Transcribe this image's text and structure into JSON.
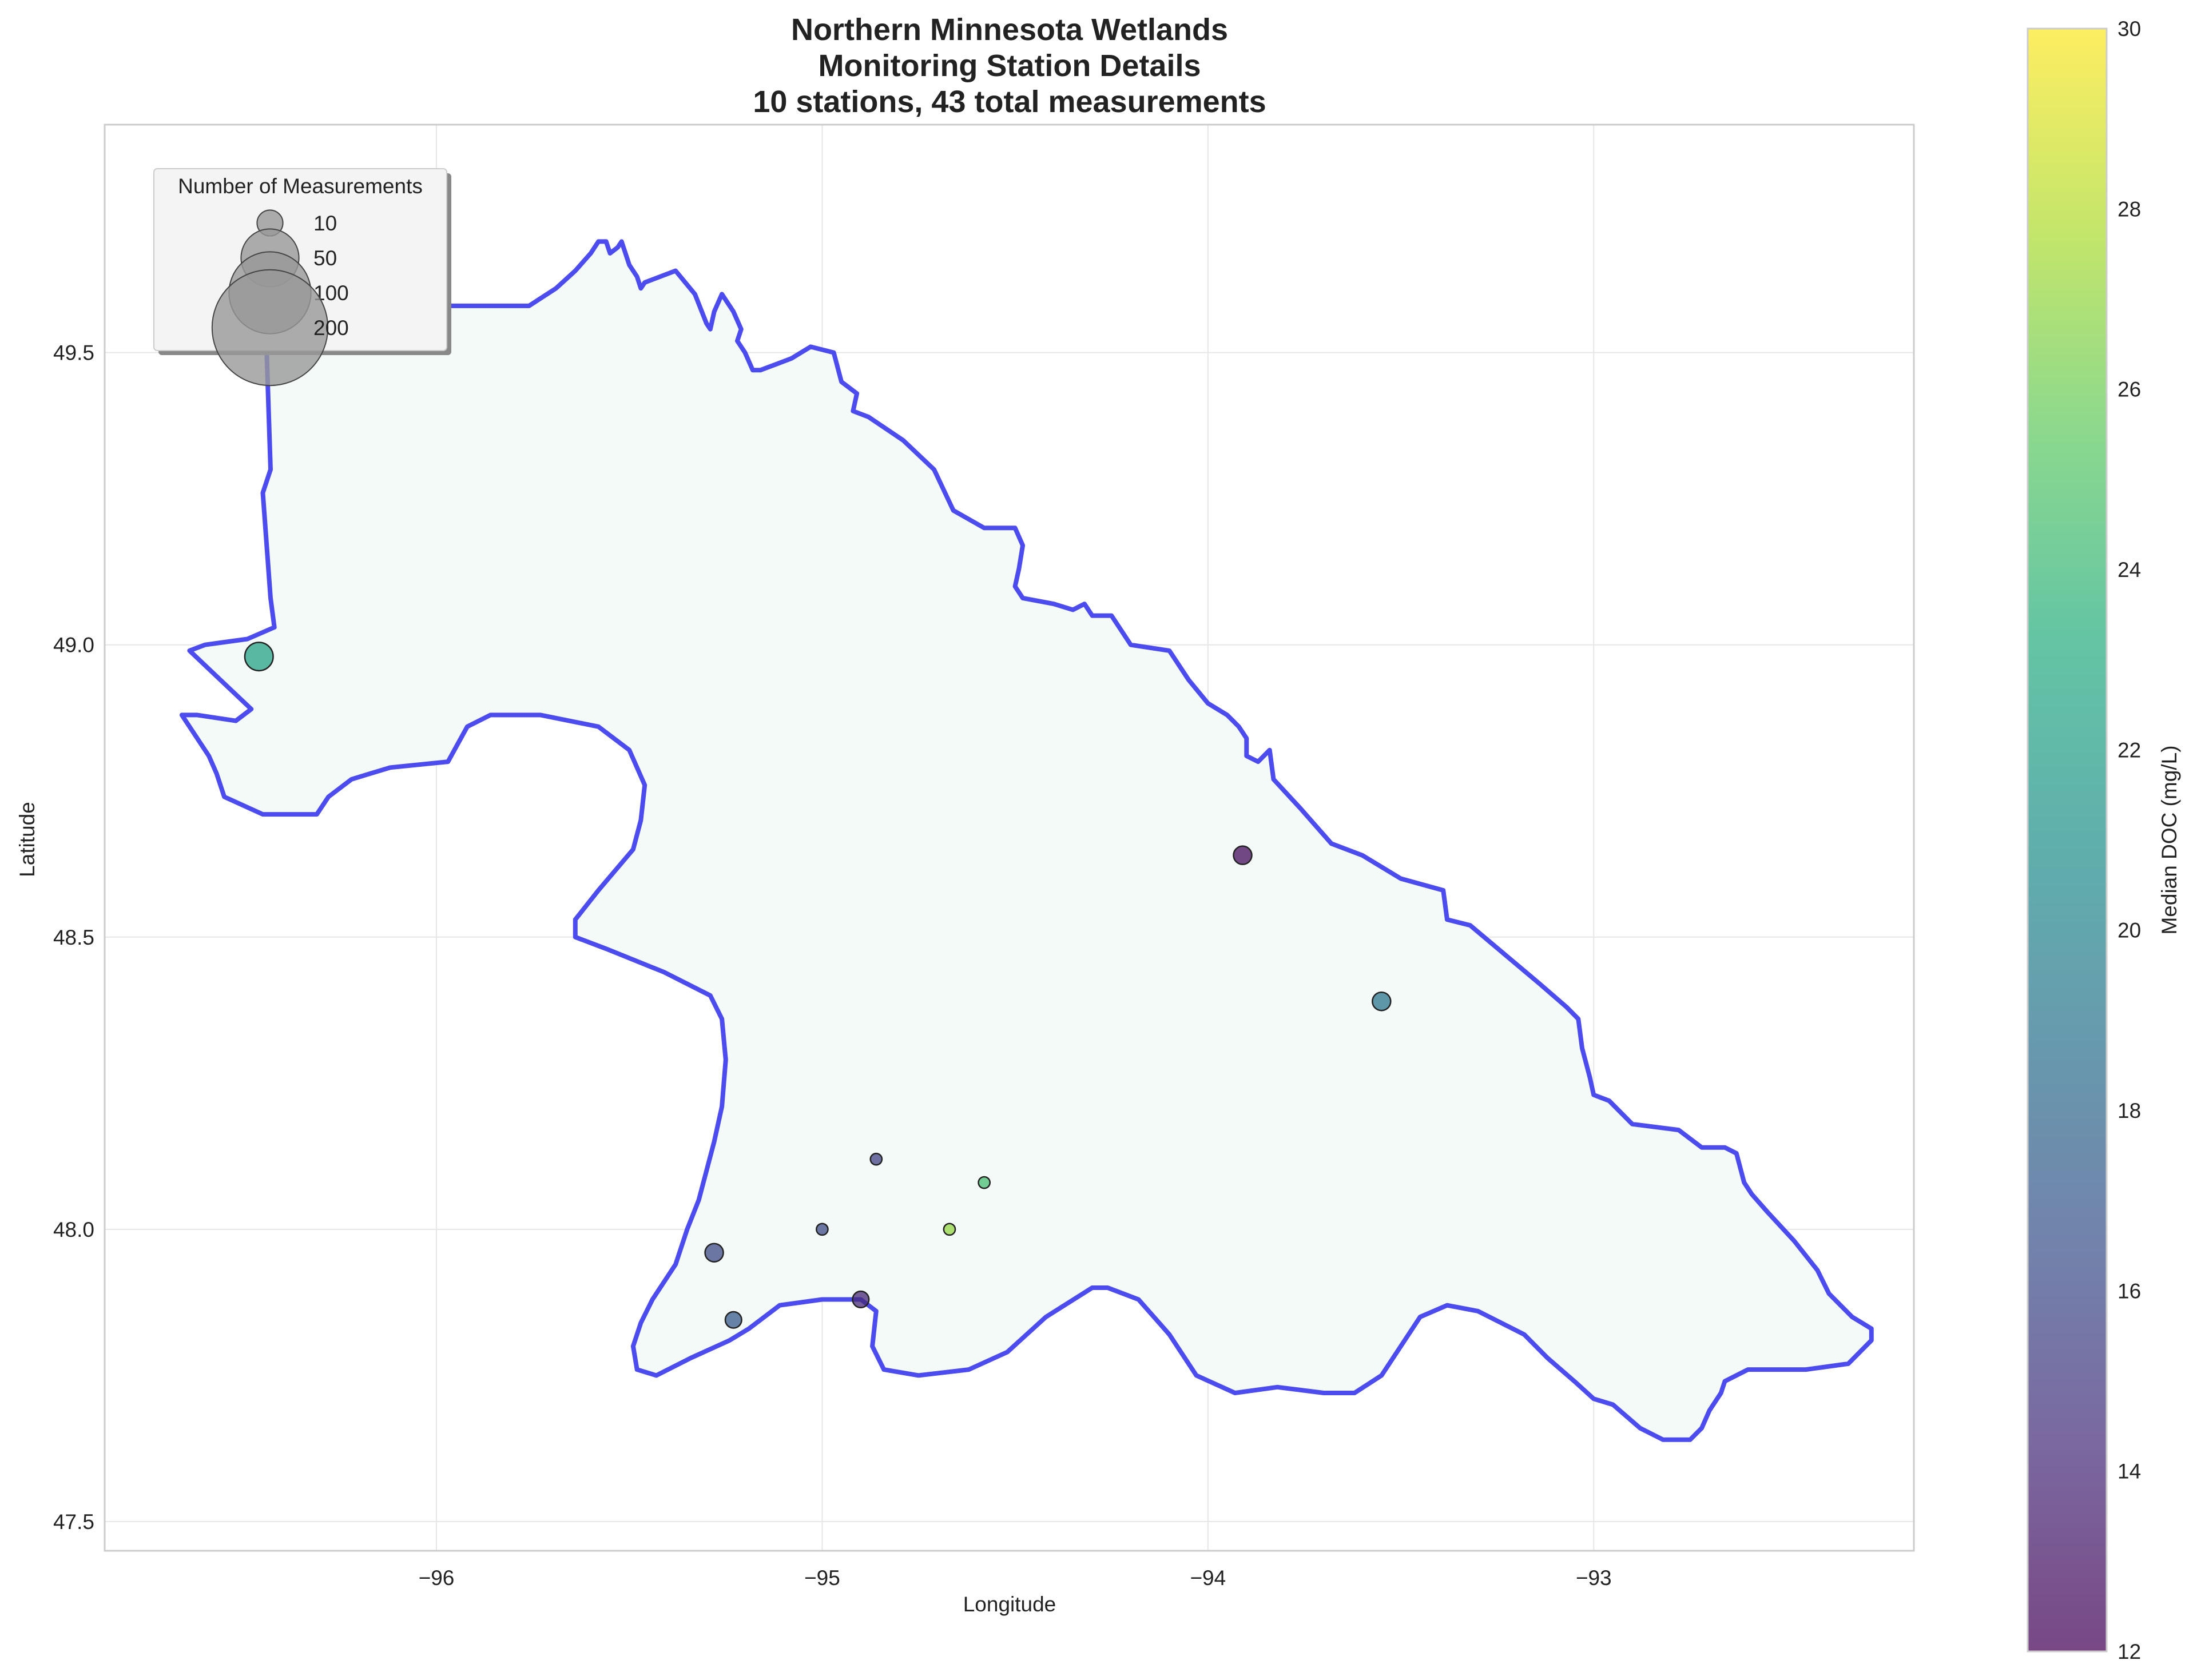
{
  "chart_data": {
    "type": "scatter",
    "title": "Northern Minnesota Wetlands",
    "subtitle_lines": [
      "Monitoring Station Details",
      "10 stations, 43 total measurements"
    ],
    "xlabel": "Longitude",
    "ylabel": "Latitude",
    "xlim": [
      -96.86,
      -92.17
    ],
    "ylim": [
      47.45,
      49.89
    ],
    "xticks": [
      -96,
      -95,
      -94,
      -93
    ],
    "xtick_labels": [
      "−96",
      "−95",
      "−94",
      "−93"
    ],
    "yticks": [
      47.5,
      48.0,
      48.5,
      49.0,
      49.5
    ],
    "ytick_labels": [
      "47.5",
      "48.0",
      "48.5",
      "49.0",
      "49.5"
    ],
    "grid": true,
    "colorbar": {
      "label": "Median DOC (mg/L)",
      "min": 12,
      "max": 30,
      "ticks": [
        12,
        14,
        16,
        18,
        20,
        22,
        24,
        26,
        28,
        30
      ],
      "tick_labels": [
        "12",
        "14",
        "16",
        "18",
        "20",
        "22",
        "24",
        "26",
        "28",
        "30"
      ],
      "colormap": "viridis"
    },
    "size_legend": {
      "title": "Number of Measurements",
      "placement": "upper-left",
      "entries": [
        {
          "label": "10",
          "value": 10
        },
        {
          "label": "50",
          "value": 50
        },
        {
          "label": "100",
          "value": 100
        },
        {
          "label": "200",
          "value": 200
        }
      ]
    },
    "stations": [
      {
        "lon": -96.46,
        "lat": 48.98,
        "measurements": 12,
        "doc": 22.3
      },
      {
        "lon": -93.91,
        "lat": 48.64,
        "measurements": 5,
        "doc": 12.5
      },
      {
        "lon": -93.55,
        "lat": 48.39,
        "measurements": 5,
        "doc": 19.0
      },
      {
        "lon": -95.28,
        "lat": 47.96,
        "measurements": 5,
        "doc": 16.0
      },
      {
        "lon": -94.86,
        "lat": 48.12,
        "measurements": 2,
        "doc": 15.5
      },
      {
        "lon": -94.58,
        "lat": 48.08,
        "measurements": 2,
        "doc": 24.5
      },
      {
        "lon": -94.67,
        "lat": 48.0,
        "measurements": 2,
        "doc": 27.0
      },
      {
        "lon": -95.0,
        "lat": 48.0,
        "measurements": 2,
        "doc": 16.0
      },
      {
        "lon": -95.23,
        "lat": 47.845,
        "measurements": 4,
        "doc": 17.0
      },
      {
        "lon": -94.9,
        "lat": 47.88,
        "measurements": 4,
        "doc": 14.0
      }
    ],
    "boundary": {
      "stroke": "#3a38ec",
      "fill": "#f3faf8",
      "points": [
        [
          -96.45,
          49.66
        ],
        [
          -96.34,
          49.66
        ],
        [
          -96.12,
          49.59
        ],
        [
          -95.96,
          49.58
        ],
        [
          -95.76,
          49.58
        ],
        [
          -95.69,
          49.61
        ],
        [
          -95.64,
          49.64
        ],
        [
          -95.6,
          49.67
        ],
        [
          -95.58,
          49.69
        ],
        [
          -95.56,
          49.69
        ],
        [
          -95.55,
          49.67
        ],
        [
          -95.53,
          49.68
        ],
        [
          -95.52,
          49.69
        ],
        [
          -95.5,
          49.65
        ],
        [
          -95.48,
          49.63
        ],
        [
          -95.47,
          49.61
        ],
        [
          -95.46,
          49.62
        ],
        [
          -95.38,
          49.64
        ],
        [
          -95.33,
          49.6
        ],
        [
          -95.3,
          49.55
        ],
        [
          -95.29,
          49.54
        ],
        [
          -95.28,
          49.57
        ],
        [
          -95.26,
          49.6
        ],
        [
          -95.23,
          49.57
        ],
        [
          -95.21,
          49.54
        ],
        [
          -95.22,
          49.52
        ],
        [
          -95.2,
          49.5
        ],
        [
          -95.18,
          49.47
        ],
        [
          -95.16,
          49.47
        ],
        [
          -95.12,
          49.48
        ],
        [
          -95.08,
          49.49
        ],
        [
          -95.03,
          49.51
        ],
        [
          -94.97,
          49.5
        ],
        [
          -94.95,
          49.45
        ],
        [
          -94.91,
          49.43
        ],
        [
          -94.92,
          49.4
        ],
        [
          -94.88,
          49.39
        ],
        [
          -94.79,
          49.35
        ],
        [
          -94.71,
          49.3
        ],
        [
          -94.66,
          49.23
        ],
        [
          -94.58,
          49.2
        ],
        [
          -94.5,
          49.2
        ],
        [
          -94.48,
          49.17
        ],
        [
          -94.49,
          49.13
        ],
        [
          -94.5,
          49.1
        ],
        [
          -94.48,
          49.08
        ],
        [
          -94.4,
          49.07
        ],
        [
          -94.35,
          49.06
        ],
        [
          -94.32,
          49.07
        ],
        [
          -94.3,
          49.05
        ],
        [
          -94.25,
          49.05
        ],
        [
          -94.22,
          49.02
        ],
        [
          -94.2,
          49.0
        ],
        [
          -94.1,
          48.99
        ],
        [
          -94.05,
          48.94
        ],
        [
          -94.0,
          48.9
        ],
        [
          -93.95,
          48.88
        ],
        [
          -93.92,
          48.86
        ],
        [
          -93.9,
          48.84
        ],
        [
          -93.9,
          48.81
        ],
        [
          -93.87,
          48.8
        ],
        [
          -93.84,
          48.82
        ],
        [
          -93.83,
          48.77
        ],
        [
          -93.76,
          48.72
        ],
        [
          -93.68,
          48.66
        ],
        [
          -93.6,
          48.64
        ],
        [
          -93.5,
          48.6
        ],
        [
          -93.39,
          48.58
        ],
        [
          -93.38,
          48.53
        ],
        [
          -93.32,
          48.52
        ],
        [
          -93.23,
          48.47
        ],
        [
          -93.14,
          48.42
        ],
        [
          -93.07,
          48.38
        ],
        [
          -93.04,
          48.36
        ],
        [
          -93.03,
          48.31
        ],
        [
          -93.01,
          48.26
        ],
        [
          -93.0,
          48.23
        ],
        [
          -92.96,
          48.22
        ],
        [
          -92.9,
          48.18
        ],
        [
          -92.78,
          48.17
        ],
        [
          -92.72,
          48.14
        ],
        [
          -92.66,
          48.14
        ],
        [
          -92.63,
          48.13
        ],
        [
          -92.61,
          48.08
        ],
        [
          -92.59,
          48.06
        ],
        [
          -92.55,
          48.03
        ],
        [
          -92.48,
          47.98
        ],
        [
          -92.42,
          47.93
        ],
        [
          -92.39,
          47.89
        ],
        [
          -92.33,
          47.85
        ],
        [
          -92.28,
          47.83
        ],
        [
          -92.28,
          47.81
        ],
        [
          -92.34,
          47.77
        ],
        [
          -92.45,
          47.76
        ],
        [
          -92.6,
          47.76
        ],
        [
          -92.66,
          47.74
        ],
        [
          -92.67,
          47.72
        ],
        [
          -92.7,
          47.69
        ],
        [
          -92.72,
          47.66
        ],
        [
          -92.75,
          47.64
        ],
        [
          -92.82,
          47.64
        ],
        [
          -92.88,
          47.66
        ],
        [
          -92.95,
          47.7
        ],
        [
          -93.0,
          47.71
        ],
        [
          -93.05,
          47.74
        ],
        [
          -93.12,
          47.78
        ],
        [
          -93.18,
          47.82
        ],
        [
          -93.3,
          47.86
        ],
        [
          -93.38,
          47.87
        ],
        [
          -93.45,
          47.85
        ],
        [
          -93.5,
          47.8
        ],
        [
          -93.55,
          47.75
        ],
        [
          -93.62,
          47.72
        ],
        [
          -93.7,
          47.72
        ],
        [
          -93.82,
          47.73
        ],
        [
          -93.93,
          47.72
        ],
        [
          -94.03,
          47.75
        ],
        [
          -94.1,
          47.82
        ],
        [
          -94.18,
          47.88
        ],
        [
          -94.26,
          47.9
        ],
        [
          -94.3,
          47.9
        ],
        [
          -94.42,
          47.85
        ],
        [
          -94.52,
          47.79
        ],
        [
          -94.62,
          47.76
        ],
        [
          -94.75,
          47.75
        ],
        [
          -94.84,
          47.76
        ],
        [
          -94.87,
          47.8
        ],
        [
          -94.86,
          47.86
        ],
        [
          -94.9,
          47.88
        ],
        [
          -95.0,
          47.88
        ],
        [
          -95.11,
          47.87
        ],
        [
          -95.19,
          47.83
        ],
        [
          -95.24,
          47.81
        ],
        [
          -95.34,
          47.78
        ],
        [
          -95.43,
          47.75
        ],
        [
          -95.48,
          47.76
        ],
        [
          -95.49,
          47.8
        ],
        [
          -95.47,
          47.84
        ],
        [
          -95.44,
          47.88
        ],
        [
          -95.38,
          47.94
        ],
        [
          -95.35,
          48.0
        ],
        [
          -95.32,
          48.05
        ],
        [
          -95.3,
          48.1
        ],
        [
          -95.28,
          48.15
        ],
        [
          -95.26,
          48.21
        ],
        [
          -95.25,
          48.29
        ],
        [
          -95.26,
          48.36
        ],
        [
          -95.29,
          48.4
        ],
        [
          -95.41,
          48.44
        ],
        [
          -95.56,
          48.48
        ],
        [
          -95.64,
          48.5
        ],
        [
          -95.64,
          48.53
        ],
        [
          -95.58,
          48.58
        ],
        [
          -95.49,
          48.65
        ],
        [
          -95.47,
          48.7
        ],
        [
          -95.46,
          48.76
        ],
        [
          -95.5,
          48.82
        ],
        [
          -95.58,
          48.86
        ],
        [
          -95.73,
          48.88
        ],
        [
          -95.86,
          48.88
        ],
        [
          -95.92,
          48.86
        ],
        [
          -95.97,
          48.8
        ],
        [
          -96.12,
          48.79
        ],
        [
          -96.22,
          48.77
        ],
        [
          -96.28,
          48.74
        ],
        [
          -96.31,
          48.71
        ],
        [
          -96.45,
          48.71
        ],
        [
          -96.55,
          48.74
        ],
        [
          -96.57,
          48.78
        ],
        [
          -96.59,
          48.81
        ],
        [
          -96.66,
          48.88
        ],
        [
          -96.62,
          48.88
        ],
        [
          -96.52,
          48.87
        ],
        [
          -96.48,
          48.89
        ],
        [
          -96.56,
          48.94
        ],
        [
          -96.64,
          48.99
        ],
        [
          -96.6,
          49.0
        ],
        [
          -96.49,
          49.01
        ],
        [
          -96.42,
          49.03
        ],
        [
          -96.43,
          49.08
        ],
        [
          -96.45,
          49.26
        ],
        [
          -96.43,
          49.3
        ],
        [
          -96.44,
          49.5
        ],
        [
          -96.45,
          49.66
        ]
      ]
    }
  }
}
